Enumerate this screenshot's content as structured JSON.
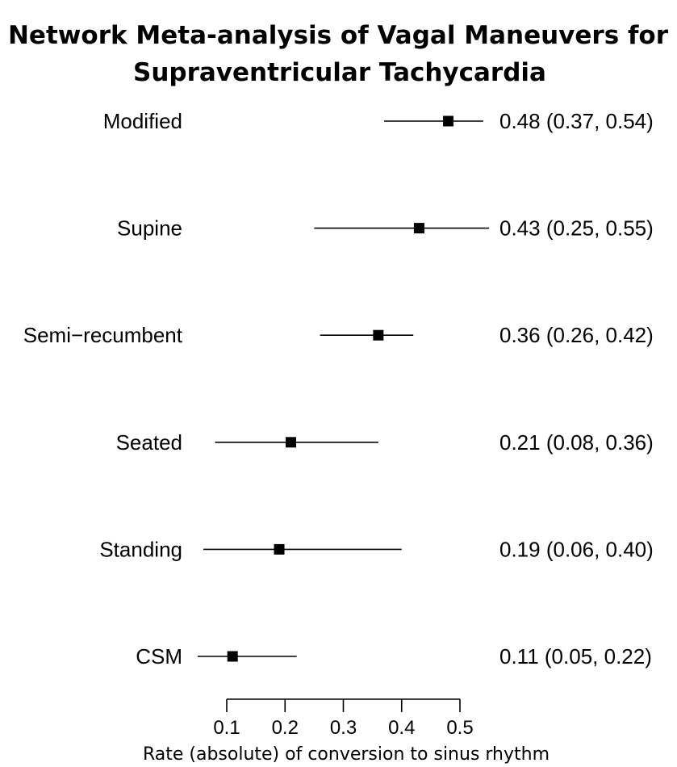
{
  "chart_data": {
    "type": "forest",
    "title_lines": [
      "Network Meta-analysis of Vagal Maneuvers for",
      "Supraventricular Tachycardia"
    ],
    "xlabel": "Rate (absolute) of conversion to sinus rhythm",
    "xlim": [
      0.1,
      0.5
    ],
    "xticks": [
      0.1,
      0.2,
      0.3,
      0.4,
      0.5
    ],
    "xtick_labels": [
      "0.1",
      "0.2",
      "0.3",
      "0.4",
      "0.5"
    ],
    "rows": [
      {
        "label": "Modified",
        "estimate": 0.48,
        "lower": 0.37,
        "upper": 0.54,
        "ci_text": "0.48 (0.37, 0.54)"
      },
      {
        "label": "Supine",
        "estimate": 0.43,
        "lower": 0.25,
        "upper": 0.55,
        "ci_text": "0.43 (0.25, 0.55)"
      },
      {
        "label": "Semi−recumbent",
        "estimate": 0.36,
        "lower": 0.26,
        "upper": 0.42,
        "ci_text": "0.36 (0.26, 0.42)"
      },
      {
        "label": "Seated",
        "estimate": 0.21,
        "lower": 0.08,
        "upper": 0.36,
        "ci_text": "0.21 (0.08, 0.36)"
      },
      {
        "label": "Standing",
        "estimate": 0.19,
        "lower": 0.06,
        "upper": 0.4,
        "ci_text": "0.19 (0.06, 0.40)"
      },
      {
        "label": "CSM",
        "estimate": 0.11,
        "lower": 0.05,
        "upper": 0.22,
        "ci_text": "0.11 (0.05, 0.22)"
      }
    ]
  }
}
